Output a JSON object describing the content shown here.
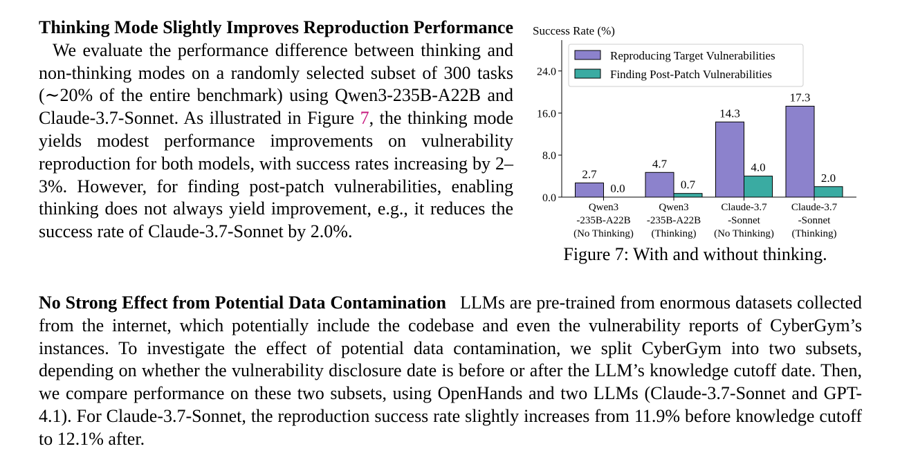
{
  "section1": {
    "heading": "Thinking Mode Slightly Improves Reproduction Performance",
    "text_a": "We evaluate the performance difference between thinking and non-thinking modes on a randomly selected subset of 300 tasks (∼20% of the entire benchmark) using Qwen3-235B-A22B and Claude-3.7-Sonnet. As illustrated in Figure",
    "fig_ref": "7",
    "text_b": ", the thinking mode yields modest performance improvements on vulnerability reproduction for both models, with success rates increasing by 2–3%. However, for finding post-patch vulnerabilities, enabling thinking does not always yield improvement, e.g., it reduces the success rate of Claude-3.7-Sonnet by 2.0%."
  },
  "section2": {
    "heading": "No Strong Effect from Potential Data Contamination",
    "text": "LLMs are pre-trained from enormous datasets collected from the internet, which potentially include the codebase and even the vulnerability reports of CyberGym’s instances. To investigate the effect of potential data contamination, we split CyberGym into two subsets, depending on whether the vulnerability disclosure date is before or after the LLM’s knowledge cutoff date. Then, we compare performance on these two subsets, using OpenHands and two LLMs (Claude-3.7-Sonnet and GPT-4.1). For Claude-3.7-Sonnet, the reproduction success rate slightly increases from 11.9% before knowledge cutoff to 12.1% after."
  },
  "figure_caption": "Figure 7: With and without thinking.",
  "colors": {
    "series1": "#8c82cc",
    "series2": "#3aaba2",
    "fig_link": "#c5157d"
  },
  "chart_data": {
    "type": "bar",
    "ylabel": "Success Rate (%)",
    "xlabel": "",
    "ylim": [
      0,
      30
    ],
    "yticks": [
      "0.0",
      "8.0",
      "16.0",
      "24.0"
    ],
    "ytick_values": [
      0,
      8,
      16,
      24
    ],
    "grid": false,
    "legend_position": "top-left",
    "categories": [
      [
        "Qwen3",
        "-235B-A22B",
        "(No Thinking)"
      ],
      [
        "Qwen3",
        "-235B-A22B",
        "(Thinking)"
      ],
      [
        "Claude-3.7",
        "-Sonnet",
        "(No Thinking)"
      ],
      [
        "Claude-3.7",
        "-Sonnet",
        "(Thinking)"
      ]
    ],
    "series": [
      {
        "name": "Reproducing Target Vulnerabilities",
        "values": [
          2.7,
          4.7,
          14.3,
          17.3
        ],
        "labels": [
          "2.7",
          "4.7",
          "14.3",
          "17.3"
        ]
      },
      {
        "name": "Finding Post-Patch Vulnerabilities",
        "values": [
          0.0,
          0.7,
          4.0,
          2.0
        ],
        "labels": [
          "0.0",
          "0.7",
          "4.0",
          "2.0"
        ]
      }
    ]
  }
}
